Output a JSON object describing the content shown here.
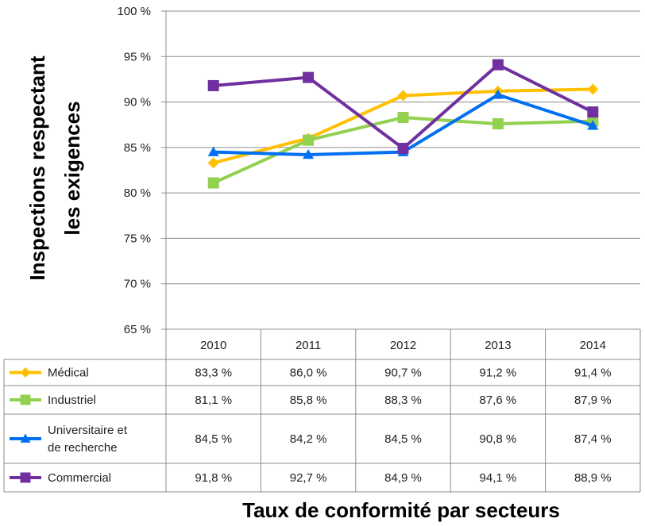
{
  "chart_data": {
    "type": "line",
    "title": "",
    "xlabel": "Taux de conformité par secteurs",
    "ylabel_lines": [
      "Inspections respectant",
      "les exigences"
    ],
    "categories": [
      "2010",
      "2011",
      "2012",
      "2013",
      "2014"
    ],
    "ylim": [
      65,
      100
    ],
    "yticks": [
      65,
      70,
      75,
      80,
      85,
      90,
      95,
      100
    ],
    "ytick_labels": [
      "65 %",
      "70 %",
      "75 %",
      "80 %",
      "85 %",
      "90 %",
      "95 %",
      "100 %"
    ],
    "grid": true,
    "legend": "data-table-left",
    "series": [
      {
        "name_lines": [
          "Médical"
        ],
        "marker": "diamond",
        "color": "#FFC000",
        "values": [
          83.3,
          86.0,
          90.7,
          91.2,
          91.4
        ],
        "labels": [
          "83,3 %",
          "86,0 %",
          "90,7 %",
          "91,2 %",
          "91,4 %"
        ]
      },
      {
        "name_lines": [
          "Industriel"
        ],
        "marker": "square",
        "color": "#92D050",
        "values": [
          81.1,
          85.8,
          88.3,
          87.6,
          87.9
        ],
        "labels": [
          "81,1 %",
          "85,8 %",
          "88,3 %",
          "87,6 %",
          "87,9 %"
        ]
      },
      {
        "name_lines": [
          "Universitaire et",
          "de recherche"
        ],
        "marker": "triangle",
        "color": "#0070F0",
        "values": [
          84.5,
          84.2,
          84.5,
          90.8,
          87.4
        ],
        "labels": [
          "84,5 %",
          "84,2 %",
          "84,5 %",
          "90,8 %",
          "87,4 %"
        ]
      },
      {
        "name_lines": [
          "Commercial"
        ],
        "marker": "square",
        "color": "#7030A0",
        "values": [
          91.8,
          92.7,
          84.9,
          94.1,
          88.9
        ],
        "labels": [
          "91,8 %",
          "92,7 %",
          "84,9 %",
          "94,1 %",
          "88,9 %"
        ]
      }
    ]
  }
}
